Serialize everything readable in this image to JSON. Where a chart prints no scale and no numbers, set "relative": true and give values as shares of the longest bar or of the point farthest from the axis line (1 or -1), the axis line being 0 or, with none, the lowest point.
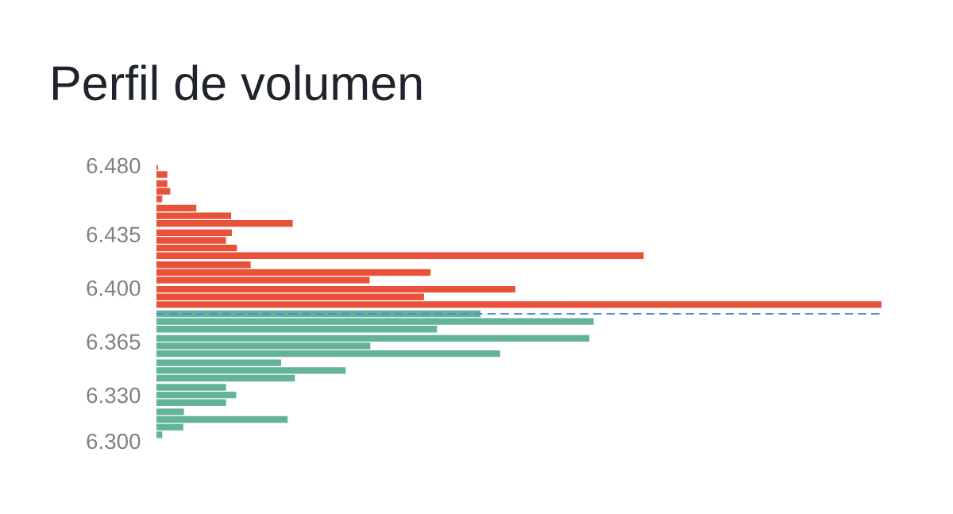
{
  "chart_data": {
    "type": "bar",
    "orientation": "horizontal",
    "relative": true,
    "title": "Perfil de volumen",
    "x": [
      6.479,
      6.474,
      6.468,
      6.463,
      6.458,
      6.452,
      6.447,
      6.442,
      6.436,
      6.431,
      6.426,
      6.421,
      6.415,
      6.41,
      6.405,
      6.399,
      6.394,
      6.389,
      6.383,
      6.378,
      6.373,
      6.367,
      6.362,
      6.357,
      6.351,
      6.346,
      6.341,
      6.335,
      6.33,
      6.325,
      6.319,
      6.314,
      6.309,
      6.304
    ],
    "values": [
      0.002,
      0.015,
      0.015,
      0.019,
      0.008,
      0.055,
      0.103,
      0.188,
      0.104,
      0.096,
      0.111,
      0.672,
      0.13,
      0.378,
      0.294,
      0.495,
      0.369,
      1.0,
      0.447,
      0.603,
      0.387,
      0.597,
      0.295,
      0.474,
      0.172,
      0.261,
      0.191,
      0.096,
      0.11,
      0.096,
      0.038,
      0.181,
      0.037,
      0.008
    ],
    "colors": [
      "#e8523a",
      "#e8523a",
      "#e8523a",
      "#e8523a",
      "#e8523a",
      "#e8523a",
      "#e8523a",
      "#e8523a",
      "#e8523a",
      "#e8523a",
      "#e8523a",
      "#e8523a",
      "#e8523a",
      "#e8523a",
      "#e8523a",
      "#e8523a",
      "#e8523a",
      "#e8523a",
      "#63b39a",
      "#63b39a",
      "#63b39a",
      "#63b39a",
      "#63b39a",
      "#63b39a",
      "#63b39a",
      "#63b39a",
      "#63b39a",
      "#63b39a",
      "#63b39a",
      "#63b39a",
      "#63b39a",
      "#63b39a",
      "#63b39a",
      "#63b39a"
    ],
    "ylim": [
      6.3,
      6.48
    ],
    "yticks": [
      {
        "value": 6.48,
        "label": "6.480"
      },
      6.435,
      {
        "value": 6.4,
        "label": "6.400"
      },
      6.365,
      {
        "value": 6.33,
        "label": "6.330"
      },
      {
        "value": 6.3,
        "label": "6.300"
      }
    ],
    "ref_lines": [
      {
        "axis": "y",
        "value": 6.383,
        "color": "#4a90d9",
        "line_style": "dashed"
      }
    ],
    "grid": false,
    "legend": false
  }
}
